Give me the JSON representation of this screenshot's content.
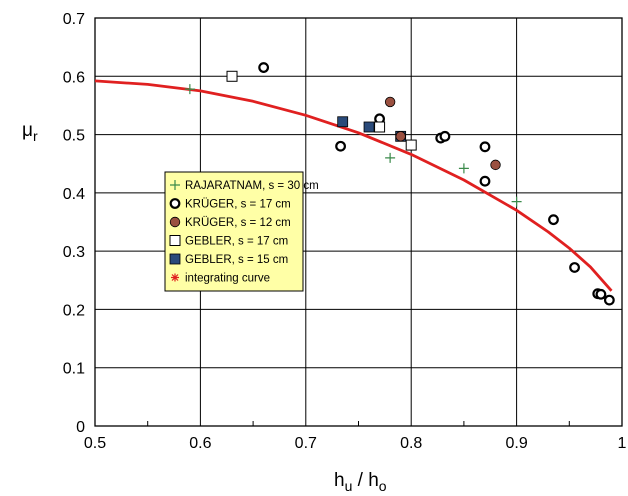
{
  "chart_data": {
    "type": "scatter",
    "xlabel": {
      "main": "h",
      "sub1": "u",
      "sep": " / h",
      "sub2": "o"
    },
    "ylabel": {
      "main": "μ",
      "sub": "r"
    },
    "xlim": [
      0.5,
      1.0
    ],
    "ylim": [
      0,
      0.7
    ],
    "x_ticks": [
      "0.5",
      "0.6",
      "0.7",
      "0.8",
      "0.9",
      "1"
    ],
    "y_ticks": [
      "0",
      "0.1",
      "0.2",
      "0.3",
      "0.4",
      "0.5",
      "0.6",
      "0.7"
    ],
    "grid": true,
    "legend_position": "center-left",
    "series": [
      {
        "name": "RAJARATNAM, s = 30 cm",
        "marker": "plus",
        "color": "#3a8a4a",
        "points": [
          [
            0.59,
            0.578
          ],
          [
            0.78,
            0.46
          ],
          [
            0.85,
            0.442
          ],
          [
            0.9,
            0.385
          ]
        ]
      },
      {
        "name": "KRÜGER, s = 17 cm",
        "marker": "open-circle",
        "color": "#000000",
        "points": [
          [
            0.66,
            0.615
          ],
          [
            0.733,
            0.48
          ],
          [
            0.77,
            0.527
          ],
          [
            0.828,
            0.494
          ],
          [
            0.832,
            0.497
          ],
          [
            0.87,
            0.479
          ],
          [
            0.87,
            0.42
          ],
          [
            0.935,
            0.354
          ],
          [
            0.955,
            0.272
          ],
          [
            0.977,
            0.227
          ],
          [
            0.98,
            0.226
          ],
          [
            0.988,
            0.216
          ]
        ]
      },
      {
        "name": "KRÜGER, s = 12 cm",
        "marker": "filled-circle",
        "color": "#9a5040",
        "points": [
          [
            0.78,
            0.556
          ],
          [
            0.79,
            0.497
          ],
          [
            0.88,
            0.448
          ]
        ]
      },
      {
        "name": "GEBLER, s = 17 cm",
        "marker": "open-square",
        "color": "#000000",
        "points": [
          [
            0.63,
            0.6
          ],
          [
            0.77,
            0.513
          ],
          [
            0.8,
            0.482
          ]
        ]
      },
      {
        "name": "GEBLER, s = 15 cm",
        "marker": "filled-square",
        "color": "#2a4a7a",
        "points": [
          [
            0.735,
            0.522
          ],
          [
            0.76,
            0.513
          ],
          [
            0.79,
            0.497
          ]
        ]
      },
      {
        "name": "integrating curve",
        "marker": "star",
        "color": "#e02020",
        "curve": true,
        "points": [
          [
            0.5,
            0.592
          ],
          [
            0.55,
            0.586
          ],
          [
            0.6,
            0.575
          ],
          [
            0.65,
            0.557
          ],
          [
            0.7,
            0.533
          ],
          [
            0.75,
            0.503
          ],
          [
            0.8,
            0.466
          ],
          [
            0.85,
            0.422
          ],
          [
            0.9,
            0.37
          ],
          [
            0.93,
            0.333
          ],
          [
            0.95,
            0.305
          ],
          [
            0.97,
            0.273
          ],
          [
            0.99,
            0.232
          ]
        ]
      }
    ]
  }
}
